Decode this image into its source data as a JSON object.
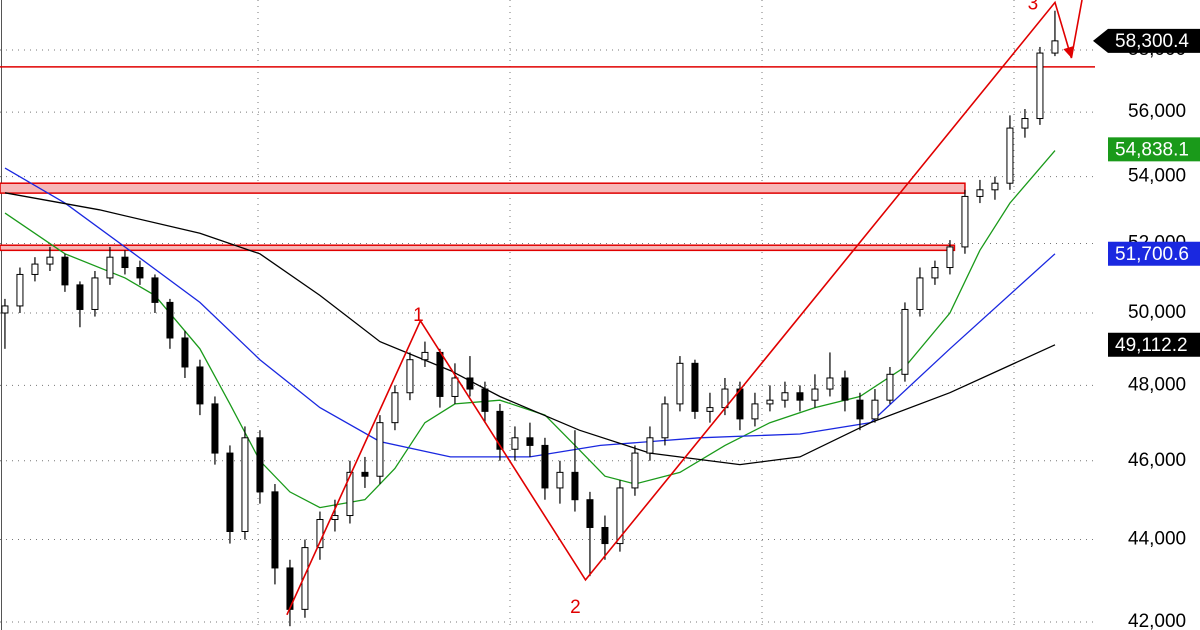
{
  "chart_data": {
    "type": "candlestick",
    "log_scale": true,
    "grid": true,
    "xlim": [
      -0.33,
      72.67
    ],
    "ylim": [
      41810,
      59660
    ],
    "yticks": [
      {
        "value": 42000,
        "label": "42,000"
      },
      {
        "value": 44000,
        "label": "44,000"
      },
      {
        "value": 46000,
        "label": "46,000"
      },
      {
        "value": 48000,
        "label": "48,000"
      },
      {
        "value": 50000,
        "label": "50,000"
      },
      {
        "value": 52000,
        "label": "52,000"
      },
      {
        "value": 54000,
        "label": "54,000"
      },
      {
        "value": 56000,
        "label": "56,000"
      },
      {
        "value": 58000,
        "label": "58,000"
      }
    ],
    "xticks": [
      16.87,
      33.67,
      50.47,
      67.27
    ],
    "up_color": "#ffffff",
    "down_color": "#000000",
    "candles": {
      "open": [
        50000,
        50200,
        51100,
        51400,
        51600,
        50800,
        50100,
        51000,
        51600,
        51300,
        51000,
        50300,
        49300,
        48500,
        47500,
        46200,
        44200,
        46600,
        45200,
        43300,
        42300,
        43800,
        44500,
        44600,
        45700,
        45600,
        47000,
        47800,
        48700,
        48900,
        47700,
        48200,
        47900,
        47300,
        46300,
        46600,
        46400,
        45300,
        45700,
        45000,
        44300,
        43900,
        45300,
        46200,
        46600,
        47500,
        48600,
        47300,
        47400,
        47900,
        47100,
        47500,
        47600,
        47800,
        47600,
        47900,
        48200,
        47600,
        47100,
        47600,
        48300,
        50100,
        51000,
        51300,
        51900,
        53400,
        53600,
        53800,
        55500,
        55800,
        57900
      ],
      "high": [
        50400,
        51300,
        51600,
        51900,
        51700,
        50900,
        51200,
        51900,
        51800,
        51500,
        51100,
        50400,
        49500,
        48700,
        47700,
        46400,
        46900,
        46800,
        45400,
        43500,
        44000,
        44700,
        45000,
        46000,
        46100,
        47200,
        48000,
        48900,
        49200,
        49000,
        48600,
        48800,
        48100,
        47500,
        46900,
        47000,
        46600,
        46000,
        46800,
        45200,
        44600,
        45500,
        46400,
        46900,
        47700,
        48800,
        48700,
        47800,
        48200,
        48100,
        47800,
        48000,
        48100,
        48000,
        48300,
        48900,
        48400,
        47800,
        47900,
        48500,
        50300,
        51300,
        51500,
        52100,
        53600,
        53900,
        54000,
        55900,
        56100,
        58100,
        59300
      ],
      "low": [
        49000,
        50000,
        50900,
        51200,
        50600,
        49600,
        49900,
        50800,
        51100,
        50800,
        50000,
        49000,
        48200,
        47200,
        45900,
        43900,
        44000,
        44900,
        42900,
        41900,
        42100,
        43500,
        44200,
        44400,
        45300,
        45400,
        46800,
        47600,
        48500,
        47400,
        47500,
        47700,
        47000,
        46000,
        46000,
        46100,
        45000,
        44900,
        44700,
        43100,
        43500,
        43700,
        45100,
        46000,
        46400,
        47300,
        47100,
        47000,
        47200,
        46800,
        46900,
        47300,
        47400,
        47300,
        47400,
        47700,
        47300,
        46800,
        47000,
        47500,
        48100,
        49900,
        50800,
        51100,
        51700,
        53200,
        53300,
        53600,
        55200,
        55600,
        57800
      ],
      "close": [
        50200,
        51100,
        51400,
        51600,
        50800,
        50100,
        51000,
        51600,
        51300,
        51000,
        50300,
        49300,
        48500,
        47500,
        46200,
        44200,
        46600,
        45200,
        43300,
        42300,
        43800,
        44500,
        44600,
        45700,
        45600,
        47000,
        47800,
        48700,
        48900,
        47700,
        48200,
        47900,
        47300,
        46300,
        46600,
        46400,
        45300,
        45700,
        45000,
        44300,
        43900,
        45300,
        46200,
        46600,
        47500,
        48600,
        47300,
        47400,
        47900,
        47100,
        47500,
        47600,
        47800,
        47600,
        47900,
        48200,
        47600,
        47100,
        47600,
        48300,
        50100,
        51000,
        51300,
        51900,
        53400,
        53600,
        53800,
        55500,
        55800,
        57900,
        58300
      ],
      "price_label": {
        "value": 58300.4,
        "label": "58,300.4"
      },
      "label_color": "#000000"
    },
    "series": [
      {
        "color": "#1a9a1a",
        "x": [
          0,
          4,
          8,
          10,
          13,
          15,
          17,
          19,
          21,
          24,
          26,
          28,
          30,
          33,
          36,
          38,
          40,
          42,
          45,
          48,
          51,
          54,
          57,
          60,
          63,
          65,
          67,
          70
        ],
        "values": [
          52900,
          51700,
          51000,
          50500,
          49000,
          47500,
          46000,
          45200,
          44800,
          45000,
          45800,
          47000,
          47500,
          47600,
          47200,
          46400,
          45600,
          45400,
          45700,
          46400,
          47000,
          47400,
          47700,
          48500,
          50000,
          51800,
          53200,
          54800
        ],
        "price_label": {
          "value": 54838.1,
          "label": "54,838.1"
        }
      },
      {
        "color": "#1a28e0",
        "x": [
          0,
          4,
          8.3,
          13,
          17,
          21,
          25,
          29.7,
          35,
          39.7,
          46.3,
          53,
          57.7,
          63,
          70
        ],
        "values": [
          54260,
          53200,
          51800,
          50300,
          48700,
          47400,
          46500,
          46100,
          46100,
          46400,
          46600,
          46700,
          47000,
          49000,
          51700
        ],
        "price_label": {
          "value": 51700.6,
          "label": "51,700.6"
        }
      },
      {
        "color": "#000000",
        "x": [
          0,
          6.3,
          13,
          17,
          21,
          25,
          29.7,
          33,
          38.3,
          43,
          49,
          53,
          57.7,
          63,
          70
        ],
        "values": [
          53510,
          53000,
          52300,
          51700,
          50500,
          49200,
          48400,
          47700,
          46800,
          46200,
          45900,
          46100,
          47000,
          47800,
          49112
        ],
        "price_label": {
          "value": 49112.2,
          "label": "49,112.2"
        }
      }
    ],
    "levels": [
      {
        "value": 57450,
        "color": "#e00000"
      }
    ],
    "bands": [
      {
        "low": 53500,
        "high": 53800,
        "x_end": 64,
        "color": "#e00000",
        "fill": "#f7b8b8"
      },
      {
        "low": 51800,
        "high": 51950,
        "x_end": 63.3,
        "color": "#e00000",
        "fill": "#f7b8b8"
      }
    ],
    "wave": {
      "color": "#e00000",
      "x": [
        18.8,
        27.7,
        38.7,
        70,
        71.1,
        71.8
      ],
      "values": [
        42170,
        49780,
        43010,
        59580,
        57740,
        59660
      ],
      "labels": [
        null,
        "1",
        "2",
        "3",
        null,
        null
      ]
    }
  }
}
